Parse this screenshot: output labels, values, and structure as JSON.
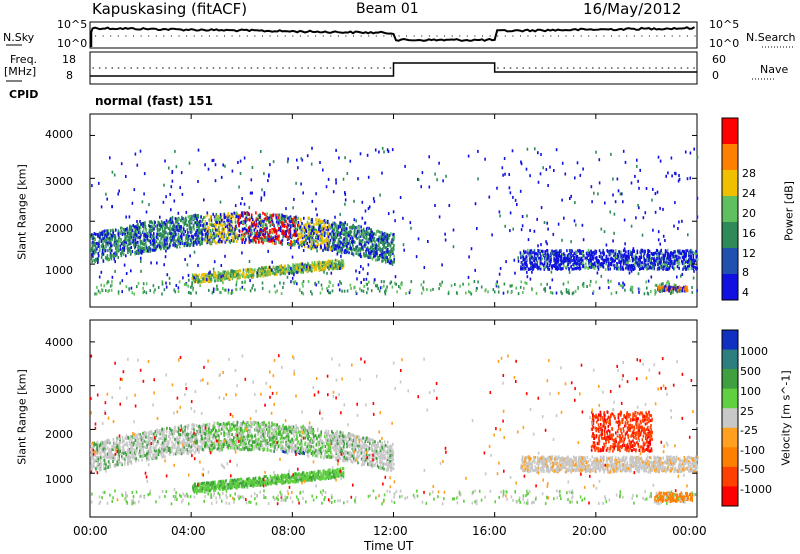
{
  "header": {
    "station": "Kapuskasing (fitACF)",
    "beam": "Beam 01",
    "date": "16/May/2012"
  },
  "status_panel": {
    "left_top_label": "N.Sky",
    "left_top_ticks": [
      "10^5",
      "10^0"
    ],
    "right_top_label": "N.Search",
    "right_top_ticks": [
      "10^5",
      "10^0"
    ],
    "freq_label": "Freq.",
    "freq_unit": "[MHz]",
    "freq_ticks": [
      "18",
      "8"
    ],
    "nave_label": "Nave",
    "nave_ticks": [
      "60",
      "0"
    ],
    "cpid_label": "CPID",
    "cpid_value": "normal (fast) 151"
  },
  "chart_data": [
    {
      "type": "heatmap",
      "title": "Power",
      "ylabel": "Slant Range [km]",
      "ylim": [
        0,
        4500
      ],
      "yticks": [
        "1000",
        "2000",
        "3000",
        "4000"
      ],
      "colorbar_label": "Power [dB]",
      "colorbar_ticks": [
        "4",
        "8",
        "12",
        "16",
        "20",
        "24",
        "28"
      ],
      "colors": [
        "#1010e0",
        "#2050b0",
        "#2e8b57",
        "#60c060",
        "#f0c000",
        "#ff8000",
        "#ff0000"
      ],
      "bands": [
        {
          "x_start": 0.0,
          "x_end": 12.0,
          "range_center": 1500,
          "range_width": 600
        },
        {
          "x_start": 17.0,
          "x_end": 24.0,
          "range_center": 1100,
          "range_width": 400
        }
      ]
    },
    {
      "type": "heatmap",
      "title": "Velocity",
      "ylabel": "Slant Range [km]",
      "ylim": [
        0,
        4500
      ],
      "yticks": [
        "1000",
        "2000",
        "3000",
        "4000"
      ],
      "colorbar_label": "Velocity [m s^-1]",
      "colorbar_ticks": [
        "1000",
        "500",
        "100",
        "25",
        "-25",
        "-100",
        "-500",
        "-1000"
      ],
      "colors": [
        "#1030c0",
        "#2d7f7f",
        "#40a040",
        "#60d040",
        "#c8c8c8",
        "#ffa020",
        "#ff8000",
        "#ff4000",
        "#ff0000"
      ],
      "xlabel": "Time UT",
      "xticks": [
        "00:00",
        "04:00",
        "08:00",
        "12:00",
        "16:00",
        "20:00",
        "00:00"
      ]
    }
  ]
}
